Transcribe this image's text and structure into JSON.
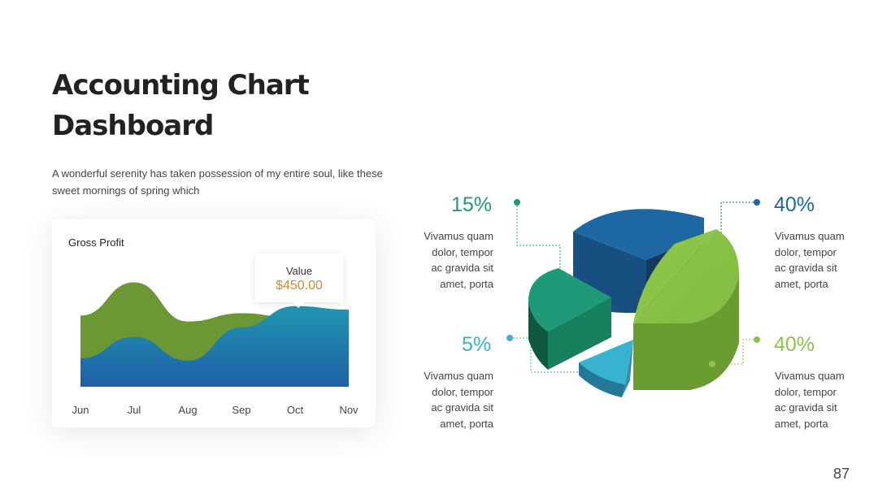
{
  "title": "Accounting Chart Dashboard",
  "subtitle": "A wonderful serenity has taken possession of my entire soul, like these sweet mornings of spring which",
  "colors": {
    "green_area": "#6b9734",
    "blue_top": "#2196b0",
    "blue_bottom": "#1f5fa6",
    "pie_navy": "#1d67a3",
    "pie_lime": "#8cc44a",
    "pie_teal": "#1f9a78",
    "pie_cyan": "#39b2d0",
    "tooltip_value": "#d4882b"
  },
  "area_chart": {
    "title": "Gross Profit",
    "tooltip": {
      "label": "Value",
      "value": "$450.00"
    }
  },
  "chart_data": [
    {
      "type": "area",
      "title": "Gross Profit",
      "categories": [
        "Jun",
        "Jul",
        "Aug",
        "Sep",
        "Oct",
        "Nov"
      ],
      "series": [
        {
          "values": [
            60,
            88,
            55,
            62,
            58,
            60
          ],
          "color": "#6b9734"
        },
        {
          "values": [
            24,
            42,
            22,
            50,
            68,
            65
          ],
          "color": "#2196b0"
        }
      ],
      "ylim": [
        0,
        100
      ],
      "grid": false,
      "annotation": {
        "label": "Value",
        "value": "$450.00",
        "at": "Oct"
      }
    },
    {
      "type": "pie",
      "style": "3d-exploded",
      "slices": [
        {
          "label": "40%",
          "value": 40,
          "color": "#1d67a3",
          "description": "Vivamus quam dolor, tempor ac gravida sit amet, porta"
        },
        {
          "label": "40%",
          "value": 40,
          "color": "#8cc44a",
          "description": "Vivamus quam dolor, tempor ac gravida sit amet, porta"
        },
        {
          "label": "5%",
          "value": 5,
          "color": "#39b2d0",
          "description": "Vivamus quam dolor, tempor ac gravida sit amet, porta"
        },
        {
          "label": "15%",
          "value": 15,
          "color": "#1f9a78",
          "description": "Vivamus quam dolor, tempor ac gravida sit amet, porta"
        }
      ]
    }
  ],
  "legend": {
    "tl": {
      "pct": "15%",
      "desc": "Vivamus quam dolor, tempor ac gravida sit amet, porta",
      "color": "#1f9a78"
    },
    "bl": {
      "pct": "5%",
      "desc": "Vivamus quam dolor, tempor ac gravida sit amet, porta",
      "color": "#39b2d0"
    },
    "tr": {
      "pct": "40%",
      "desc": "Vivamus quam dolor, tempor ac gravida sit amet, porta",
      "color": "#1d67a3"
    },
    "br": {
      "pct": "40%",
      "desc": "Vivamus quam dolor, tempor ac gravida sit amet, porta",
      "color": "#8cc44a"
    }
  },
  "page_number": "87"
}
